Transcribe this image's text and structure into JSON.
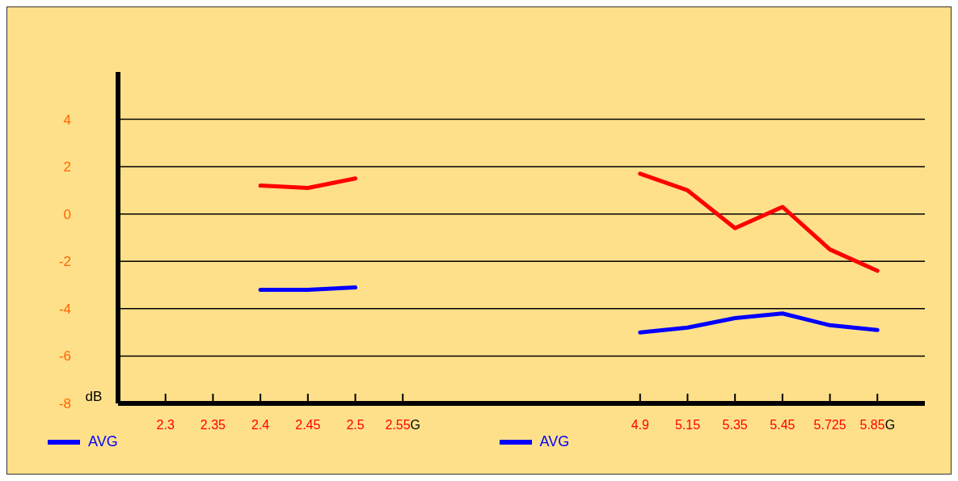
{
  "chart_data": {
    "type": "line",
    "ylabel": "dB",
    "xlabel": "G",
    "categories": [
      null,
      "2.3",
      "2.35",
      "2.4",
      "2.45",
      "2.5",
      "2.55",
      null,
      null,
      null,
      null,
      "4.9",
      "5.15",
      "5.35",
      "5.45",
      "5.725",
      "5.85",
      null
    ],
    "series": [
      {
        "color": "#ff0000",
        "values": [
          null,
          null,
          null,
          1.2,
          1.1,
          1.5,
          null,
          null,
          null,
          null,
          null,
          null,
          null,
          null,
          null,
          null,
          null,
          null
        ]
      },
      {
        "name": "AVG",
        "color": "#0000ff",
        "values": [
          null,
          null,
          null,
          -3.2,
          -3.2,
          -3.1,
          null,
          null,
          null,
          null,
          null,
          null,
          null,
          null,
          null,
          null,
          null,
          null
        ]
      },
      {
        "color": "#ff0000",
        "values": [
          null,
          null,
          null,
          null,
          null,
          null,
          null,
          null,
          null,
          null,
          null,
          1.7,
          1.0,
          -0.6,
          0.3,
          -1.5,
          -2.4,
          null
        ]
      },
      {
        "name": "AVG",
        "color": "#0000ff",
        "values": [
          null,
          null,
          null,
          null,
          null,
          null,
          null,
          null,
          null,
          null,
          null,
          -5.0,
          -4.8,
          -4.4,
          -4.2,
          -4.7,
          -4.9,
          null
        ]
      }
    ],
    "ylim": [
      -8,
      6
    ],
    "yticks": [
      -8,
      -6,
      -4,
      -2,
      0,
      2,
      4
    ],
    "grid": "y",
    "legend": "bottom",
    "marker": "none",
    "line_style": "solid"
  }
}
